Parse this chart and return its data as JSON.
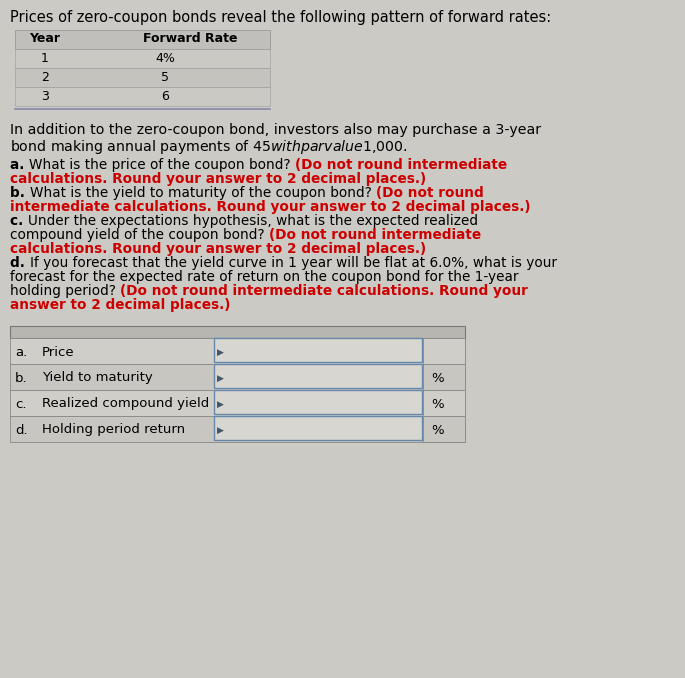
{
  "bg_color": "#cccac5",
  "title_text": "Prices of zero-coupon bonds reveal the following pattern of forward rates:",
  "table1_header_year": "Year",
  "table1_header_rate": "Forward Rate",
  "table1_rows": [
    [
      "1",
      "4%"
    ],
    [
      "2",
      "5"
    ],
    [
      "3",
      "6"
    ]
  ],
  "paragraph_line1": "In addition to the zero-coupon bond, investors also may purchase a 3-year",
  "paragraph_line2": "bond making annual payments of $45 with par value $1,000.",
  "q_lines": [
    {
      "segs": [
        [
          "a. ",
          "bold",
          "black"
        ],
        [
          "What is the price of the coupon bond? ",
          "normal",
          "black"
        ],
        [
          "(Do not round intermediate",
          "bold",
          "#cc0000"
        ]
      ]
    },
    {
      "segs": [
        [
          "calculations. Round your answer to 2 decimal places.)",
          "bold",
          "#cc0000"
        ]
      ]
    },
    {
      "segs": [
        [
          "b. ",
          "bold",
          "black"
        ],
        [
          "What is the yield to maturity of the coupon bond? ",
          "normal",
          "black"
        ],
        [
          "(Do not round",
          "bold",
          "#cc0000"
        ]
      ]
    },
    {
      "segs": [
        [
          "intermediate calculations. Round your answer to 2 decimal places.)",
          "bold",
          "#cc0000"
        ]
      ]
    },
    {
      "segs": [
        [
          "c. ",
          "bold",
          "black"
        ],
        [
          "Under the expectations hypothesis, what is the expected realized",
          "normal",
          "black"
        ]
      ]
    },
    {
      "segs": [
        [
          "compound yield of the coupon bond? ",
          "normal",
          "black"
        ],
        [
          "(Do not round intermediate",
          "bold",
          "#cc0000"
        ]
      ]
    },
    {
      "segs": [
        [
          "calculations. Round your answer to 2 decimal places.)",
          "bold",
          "#cc0000"
        ]
      ]
    },
    {
      "segs": [
        [
          "d. ",
          "bold",
          "black"
        ],
        [
          "If you forecast that the yield curve in 1 year will be flat at 6.0%, what is your",
          "normal",
          "black"
        ]
      ]
    },
    {
      "segs": [
        [
          "forecast for the expected rate of return on the coupon bond for the 1-year",
          "normal",
          "black"
        ]
      ]
    },
    {
      "segs": [
        [
          "holding period? ",
          "normal",
          "black"
        ],
        [
          "(Do not round intermediate calculations. Round your",
          "bold",
          "#cc0000"
        ]
      ]
    },
    {
      "segs": [
        [
          "answer to 2 decimal places.)",
          "bold",
          "#cc0000"
        ]
      ]
    }
  ],
  "answer_rows": [
    {
      "label": "a.",
      "description": "Price",
      "has_percent": false
    },
    {
      "label": "b.",
      "description": "Yield to maturity",
      "has_percent": true
    },
    {
      "label": "c.",
      "description": "Realized compound yield",
      "has_percent": true
    },
    {
      "label": "d.",
      "description": "Holding period return",
      "has_percent": true
    }
  ]
}
